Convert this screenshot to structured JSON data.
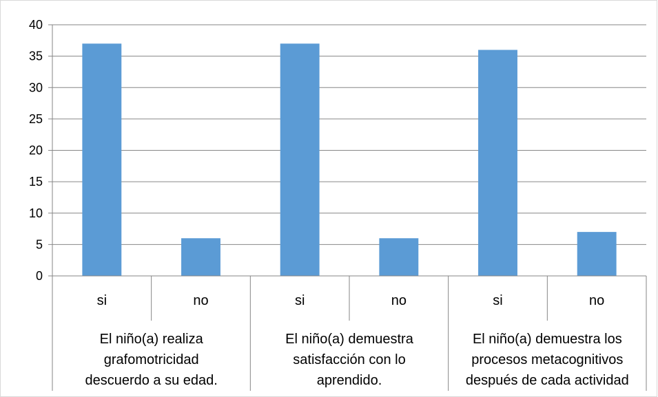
{
  "chart_data": {
    "type": "bar",
    "title": "",
    "xlabel": "",
    "ylabel": "",
    "ylim": [
      0,
      40
    ],
    "yticks": [
      0,
      5,
      10,
      15,
      20,
      25,
      30,
      35,
      40
    ],
    "grid": true,
    "legend": "none",
    "bar_color": "#5B9BD5",
    "groups": [
      {
        "label_lines": [
          "El niño(a) realiza",
          "grafomotricidad",
          "descuerdo a su edad."
        ],
        "categories": [
          "si",
          "no"
        ],
        "values": [
          37,
          6
        ]
      },
      {
        "label_lines": [
          "El niño(a) demuestra",
          "satisfacción con  lo",
          "aprendido."
        ],
        "categories": [
          "si",
          "no"
        ],
        "values": [
          37,
          6
        ]
      },
      {
        "label_lines": [
          "El niño(a) demuestra los",
          "procesos metacognitivos",
          "después de cada actividad"
        ],
        "categories": [
          "si",
          "no"
        ],
        "values": [
          36,
          7
        ]
      }
    ]
  }
}
